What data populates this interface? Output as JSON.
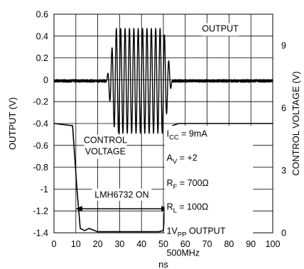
{
  "chart_data": {
    "type": "line",
    "xlabel": "ns",
    "ylabel_left": "OUTPUT (V)",
    "ylabel_right": "CONTROL VOLTAGE (V)",
    "xlim": [
      0,
      100
    ],
    "ylim_left": [
      -1.4,
      0.6
    ],
    "ylim_right": [
      0,
      10.5
    ],
    "x_ticks": [
      "0",
      "10",
      "20",
      "30",
      "40",
      "50",
      "60",
      "70",
      "80",
      "90",
      "100"
    ],
    "y_left_ticks": [
      "0.6",
      "0.4",
      "0.2",
      "0",
      "-0.2",
      "-0.4",
      "-0.6",
      "-0.8",
      "-1",
      "-1.2",
      "-1.4"
    ],
    "y_right_ticks": [
      "9",
      "6",
      "3",
      "0"
    ],
    "grid": true,
    "series": [
      {
        "name": "OUTPUT",
        "axis": "left",
        "burst_start": 24,
        "burst_end": 54,
        "frequency_ghz": 0.5,
        "amplitude": 0.48,
        "baseline": -0.01
      },
      {
        "name": "CONTROL VOLTAGE",
        "axis": "left",
        "x": [
          0,
          8.5,
          10.5,
          12,
          14,
          16,
          20,
          30,
          40,
          48,
          50,
          51.5,
          54,
          57,
          60,
          100
        ],
        "y": [
          -0.4,
          -0.42,
          -1.0,
          -1.36,
          -1.38,
          -1.36,
          -1.39,
          -1.39,
          -1.39,
          -1.39,
          -1.38,
          -0.9,
          -0.42,
          -0.4,
          -0.4,
          -0.4
        ]
      }
    ],
    "annotations": {
      "output_label": "OUTPUT",
      "control_label_1": "CONTROL",
      "control_label_2": "VOLTAGE",
      "on_label": "LMH6732 ON",
      "on_range": [
        10,
        52
      ],
      "on_level": -1.18,
      "icc": "9mA",
      "av": "+2",
      "rf": "700Ω",
      "rl": "100Ω",
      "out_pp": "1V",
      "freq": "500MHz"
    }
  }
}
